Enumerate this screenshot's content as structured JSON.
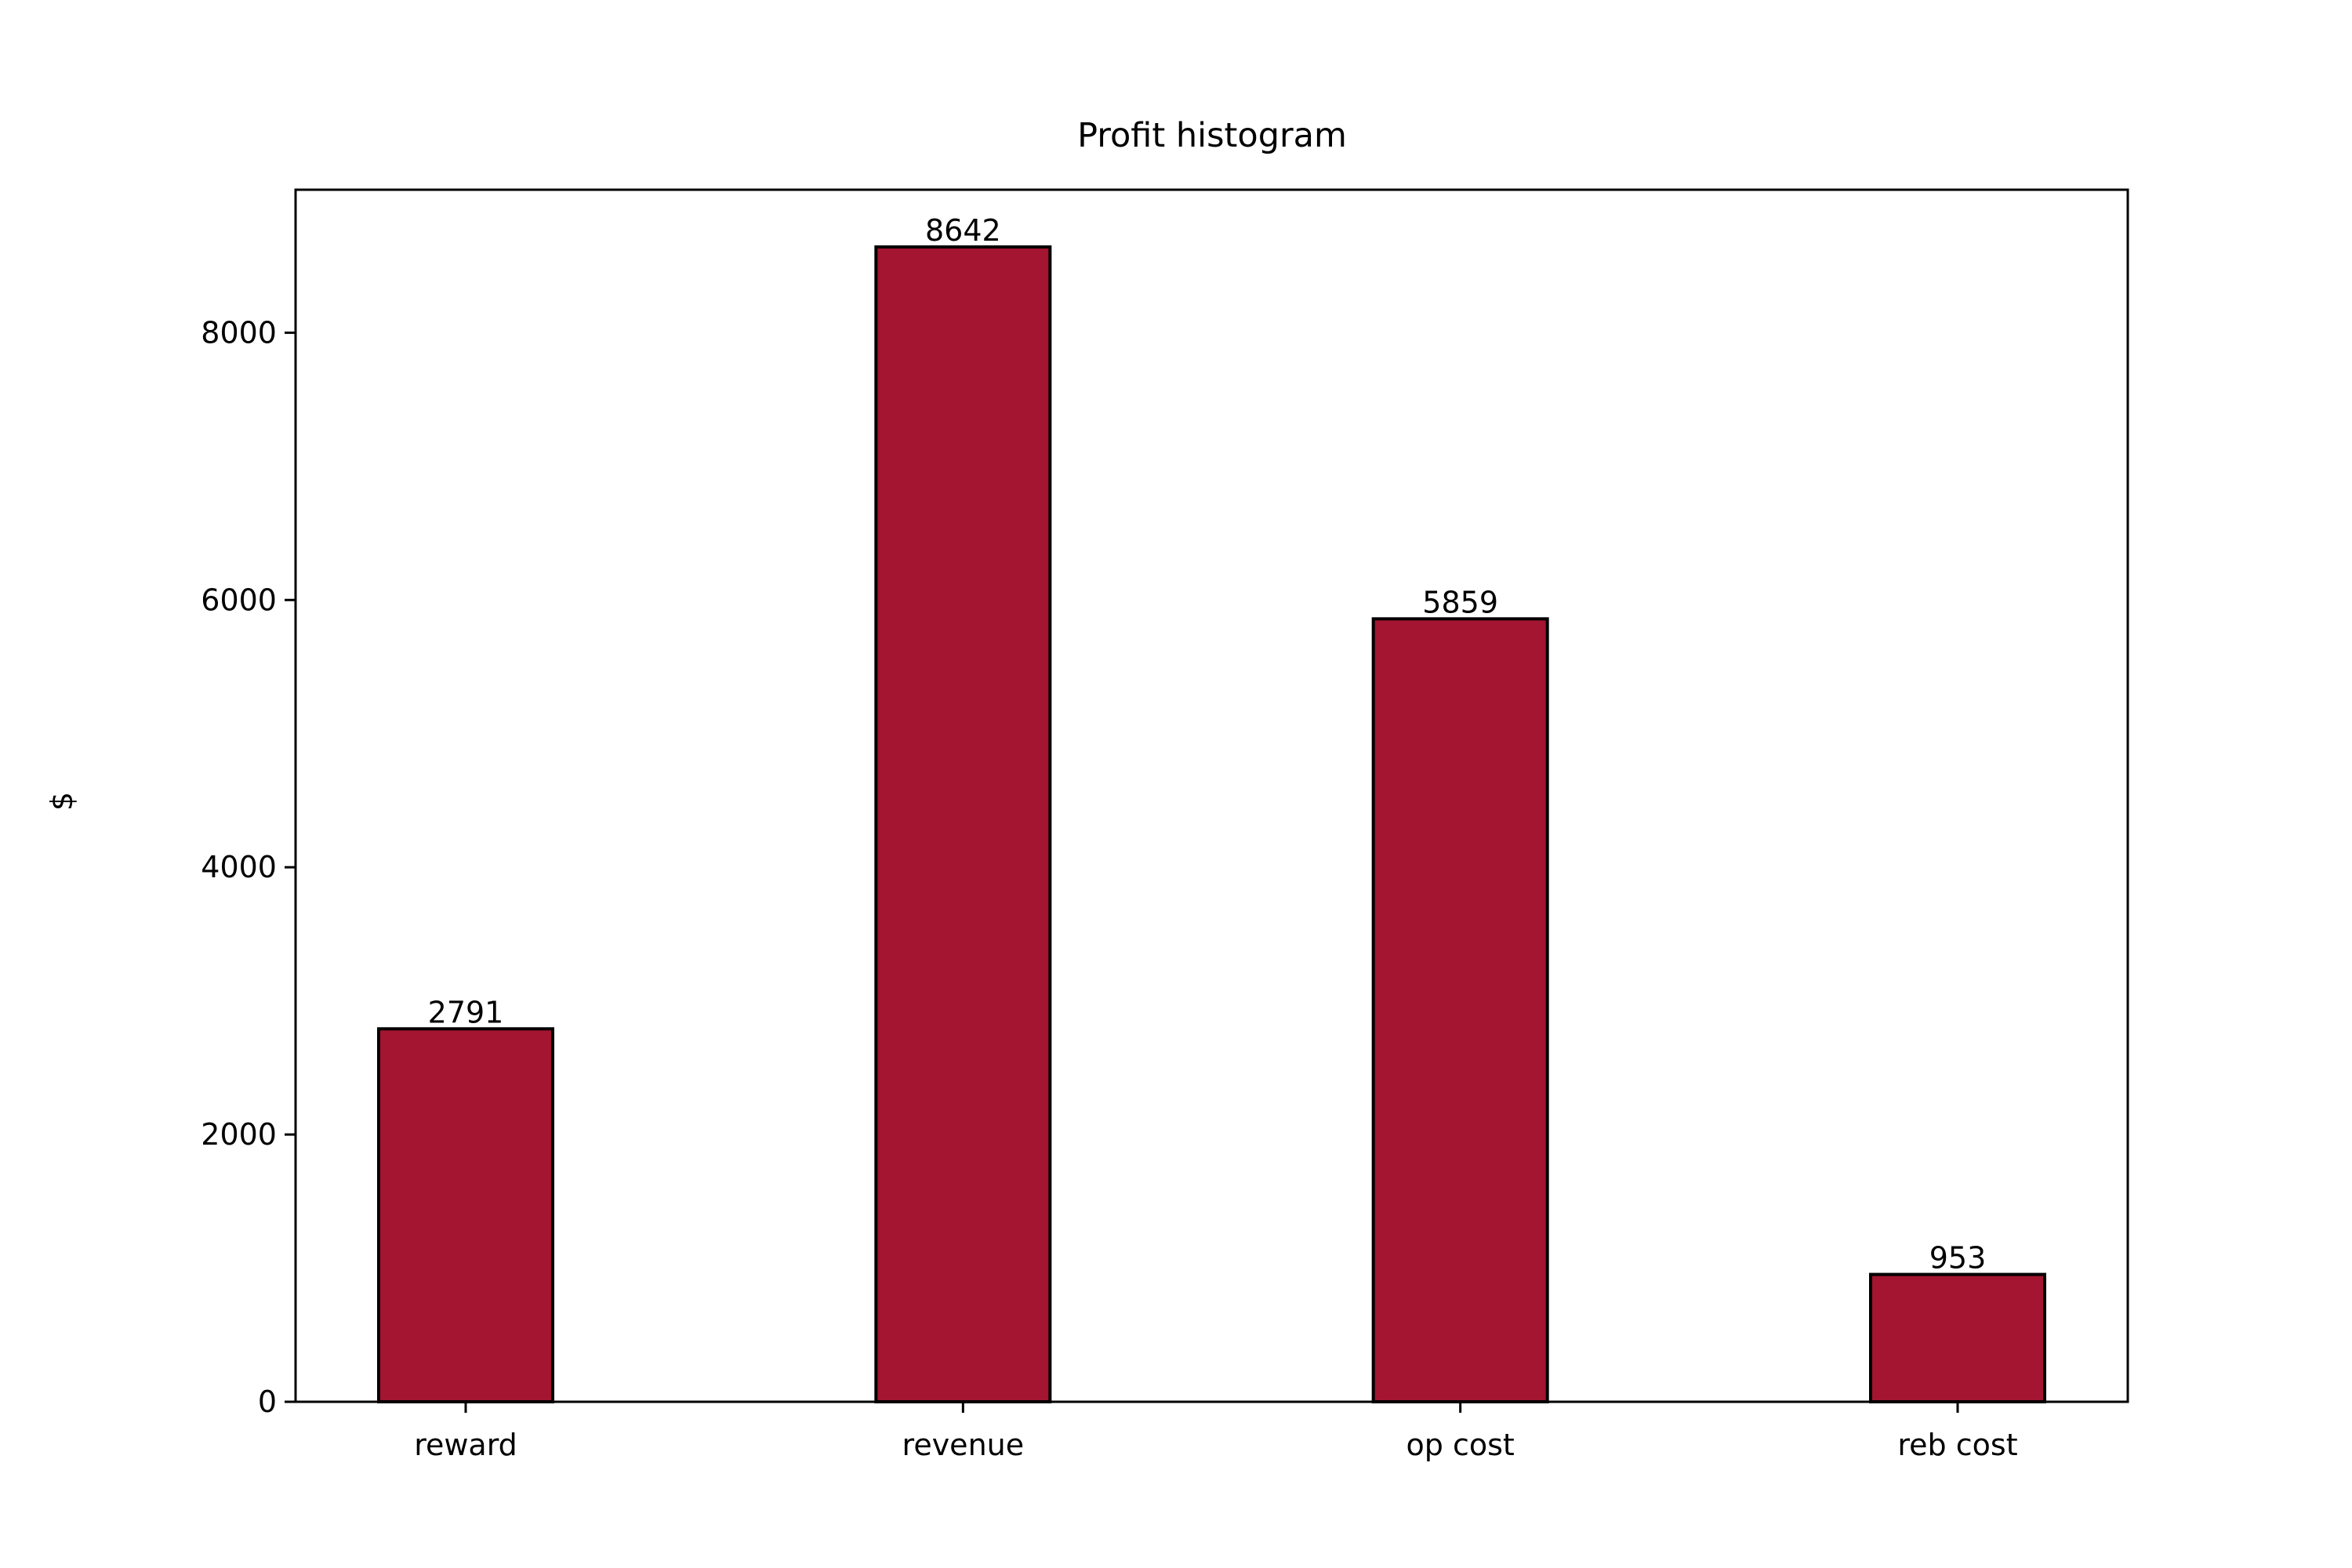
{
  "chart_data": {
    "type": "bar",
    "title": "Profit histogram",
    "xlabel": "",
    "ylabel": "$",
    "categories": [
      "reward",
      "revenue",
      "op cost",
      "reb cost"
    ],
    "values": [
      2791,
      8642,
      5859,
      953
    ],
    "data_labels": [
      "2791",
      "8642",
      "5859",
      "953"
    ],
    "ylim": [
      0,
      9070
    ],
    "yticks": [
      0,
      2000,
      4000,
      6000,
      8000
    ],
    "ytick_labels": [
      "0",
      "2000",
      "4000",
      "6000",
      "8000"
    ],
    "grid": false,
    "legend": "none",
    "bar_color": "#a31530",
    "bar_edge_color": "#000000"
  }
}
